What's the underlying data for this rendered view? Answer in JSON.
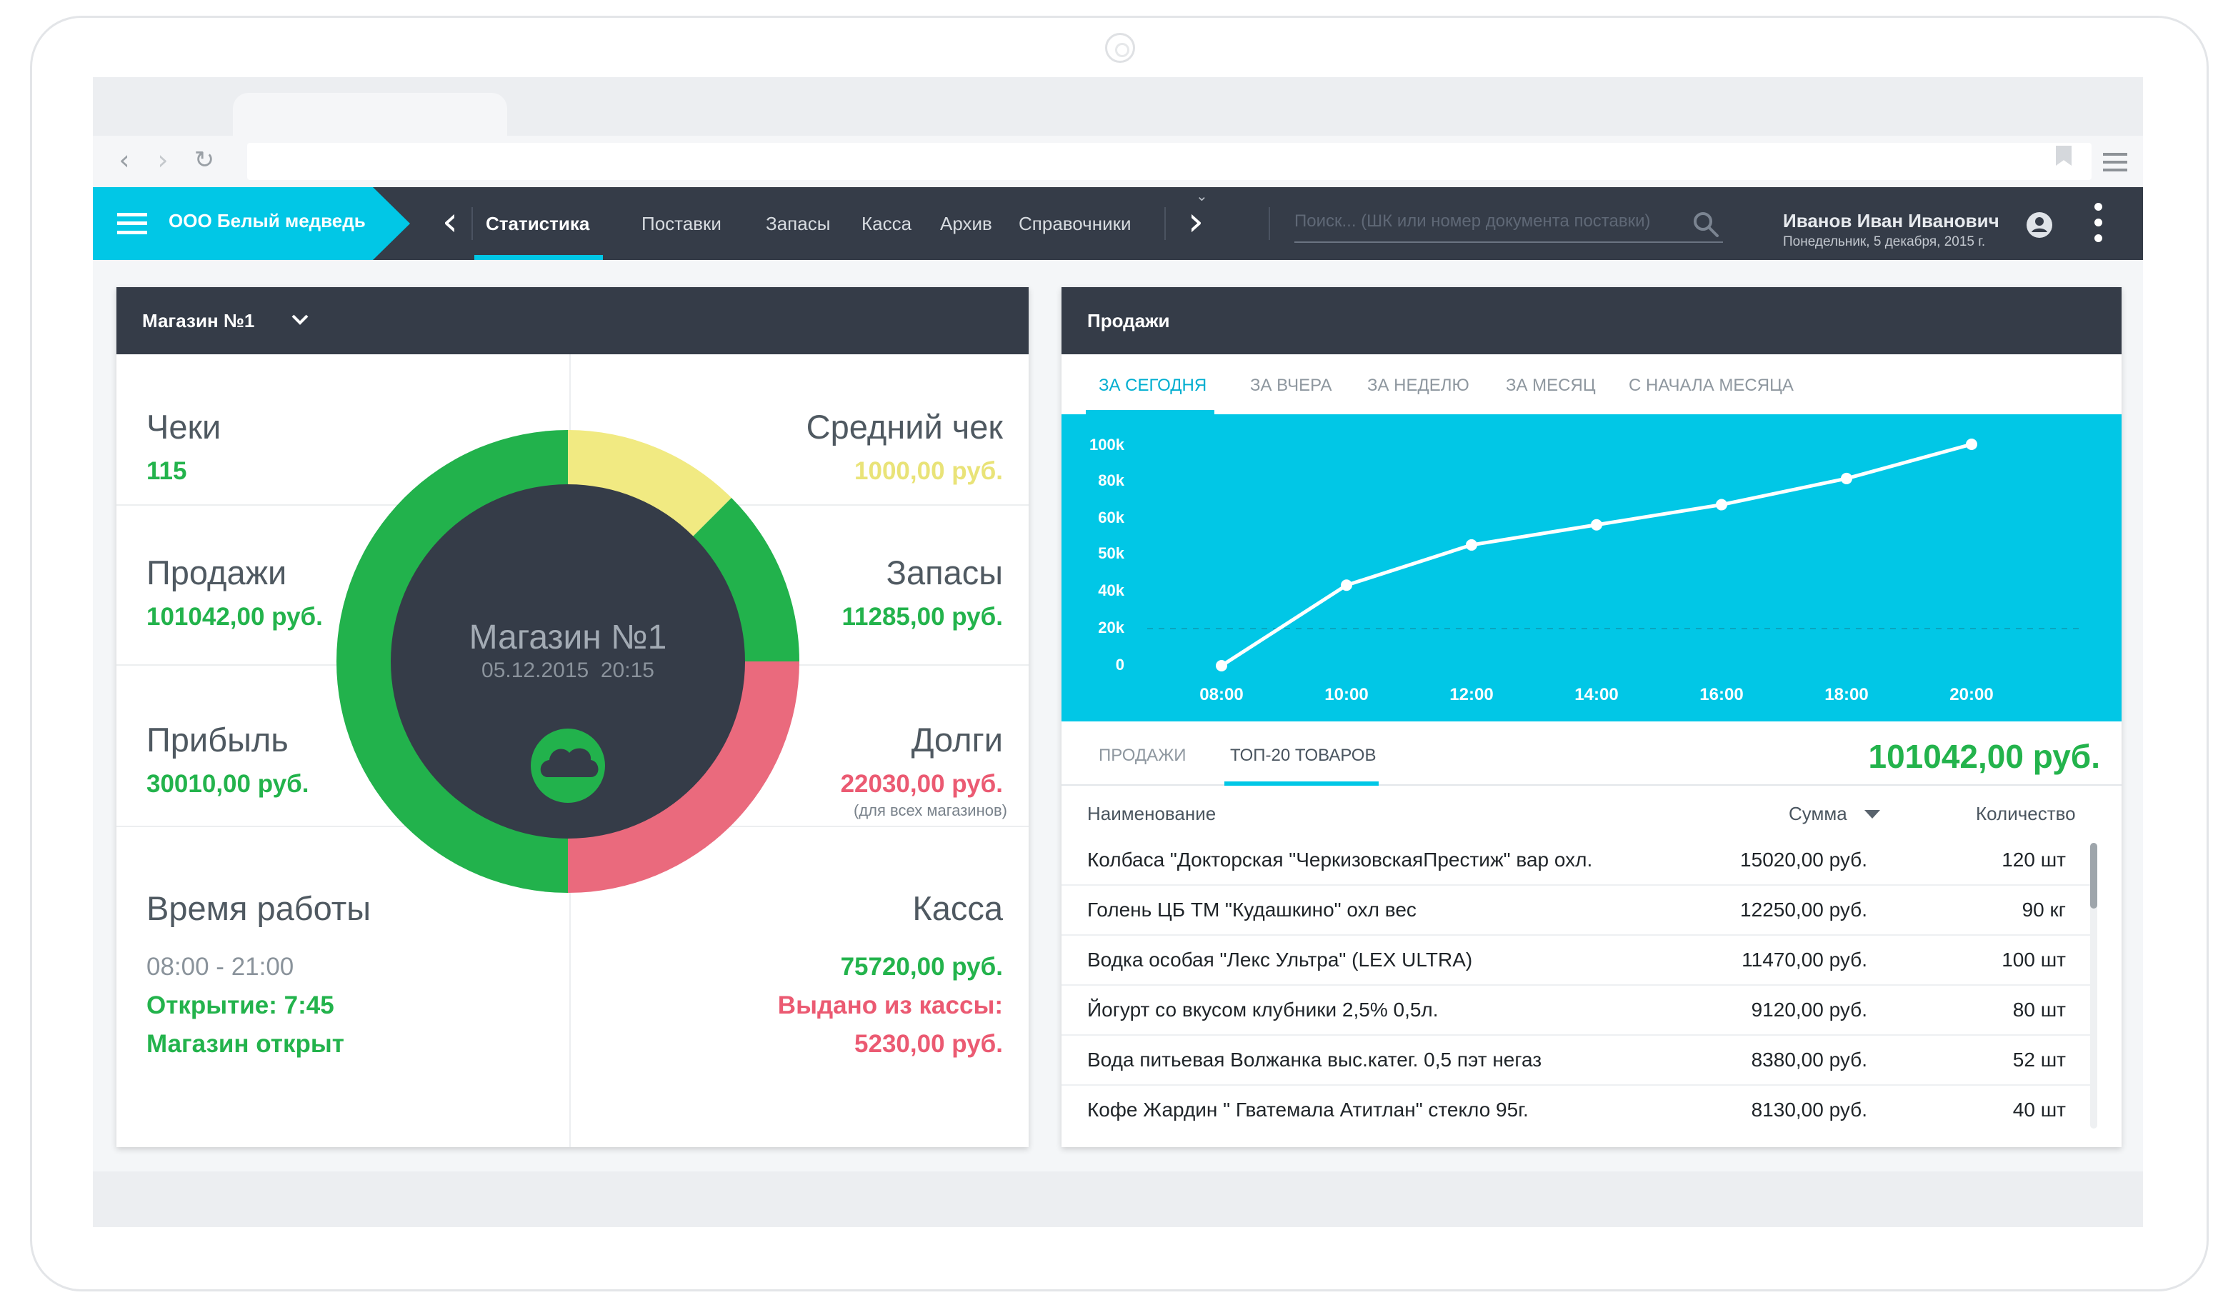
{
  "browser": {
    "url": ""
  },
  "app": {
    "company": "ООО Белый медведь",
    "nav": [
      {
        "label": "Статистика",
        "active": true
      },
      {
        "label": "Поставки"
      },
      {
        "label": "Запасы"
      },
      {
        "label": "Касса"
      },
      {
        "label": "Архив"
      },
      {
        "label": "Справочники"
      }
    ],
    "search_placeholder": "Поиск... (ШК или номер документа поставки)",
    "user": {
      "name": "Иванов Иван Иванович",
      "date": "Понедельник, 5 декабря, 2015 г."
    }
  },
  "store": {
    "selector": "Магазин №1",
    "center_title": "Магазин №1",
    "center_datetime": "05.12.2015  20:15",
    "checks": {
      "label": "Чеки",
      "value": "115"
    },
    "avg_check": {
      "label": "Средний чек",
      "value": "1000,00 руб."
    },
    "sales": {
      "label": "Продажи",
      "value": "101042,00 руб."
    },
    "stock": {
      "label": "Запасы",
      "value": "11285,00 руб."
    },
    "profit": {
      "label": "Прибыль",
      "value": "30010,00 руб."
    },
    "debts": {
      "label": "Долги",
      "value": "22030,00 руб.",
      "note": "(для всех магазинов)"
    },
    "hours": {
      "label": "Время работы",
      "range": "08:00 - 21:00",
      "opening": "Открытие: 7:45",
      "status": "Магазин открыт"
    },
    "cash": {
      "label": "Касса",
      "value": "75720,00 руб.",
      "issued_label": "Выдано из кассы:",
      "issued_value": "5230,00 руб."
    },
    "ring_colors": {
      "green": "#22b24c",
      "yellow": "#f1ea82",
      "red": "#ea6a7d",
      "center": "#353c48"
    }
  },
  "sales_panel": {
    "title": "Продажи",
    "periods": [
      "ЗА СЕГОДНЯ",
      "ЗА ВЧЕРА",
      "ЗА НЕДЕЛЮ",
      "ЗА МЕСЯЦ",
      "С НАЧАЛА МЕСЯЦА"
    ],
    "subtabs": [
      "ПРОДАЖИ",
      "ТОП-20 ТОВАРОВ"
    ],
    "total": "101042,00 руб.",
    "columns": {
      "name": "Наименование",
      "sum": "Сумма",
      "qty": "Количество"
    },
    "rows": [
      {
        "name": "Колбаса \"Докторская \"ЧеркизовскаяПрестиж\"  вар охл.",
        "sum": "15020,00 руб.",
        "qty": "120 шт"
      },
      {
        "name": "Голень ЦБ ТМ \"Кудашкино\" охл вес",
        "sum": "12250,00 руб.",
        "qty": "90 кг"
      },
      {
        "name": "Водка особая \"Лекс Ультра\" (LEX ULTRA)",
        "sum": "11470,00 руб.",
        "qty": "100 шт"
      },
      {
        "name": "Йогурт со вкусом клубники 2,5% 0,5л.",
        "sum": "9120,00 руб.",
        "qty": "80 шт"
      },
      {
        "name": "Вода питьевая Волжанка выс.катег. 0,5 пэт негаз",
        "sum": "8380,00 руб.",
        "qty": "52 шт"
      },
      {
        "name": "Кофе Жардин \" Гватемала Атитлан\" стекло 95г.",
        "sum": "8130,00 руб.",
        "qty": "40 шт"
      }
    ]
  },
  "chart_data": {
    "type": "line",
    "x": [
      "08:00",
      "10:00",
      "12:00",
      "14:00",
      "16:00",
      "18:00",
      "20:00"
    ],
    "x_numeric": [
      8,
      10,
      12,
      14,
      16,
      18,
      20
    ],
    "y_ticks": [
      "100k",
      "80k",
      "60k",
      "50k",
      "40k",
      "20k",
      "0"
    ],
    "series": [
      {
        "points": [
          [
            8,
            0
          ],
          [
            10,
            40
          ],
          [
            12,
            60
          ],
          [
            14,
            70
          ],
          [
            16,
            80
          ],
          [
            18,
            93
          ],
          [
            20,
            110
          ]
        ]
      }
    ],
    "line_color": "#ffffff",
    "background": "#01c7e6",
    "grid": false
  }
}
